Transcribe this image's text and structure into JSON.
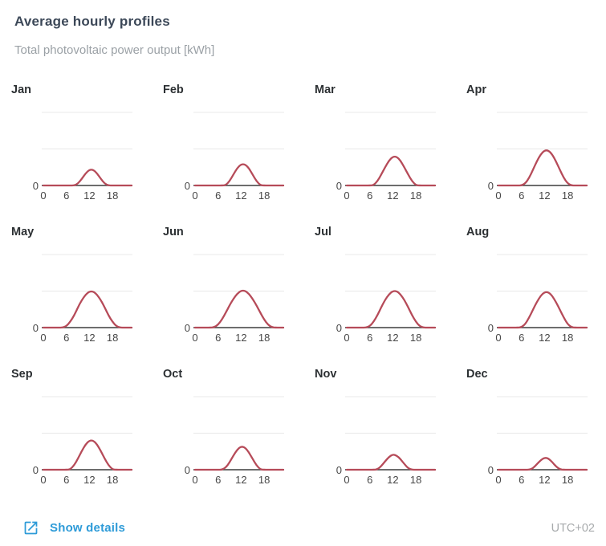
{
  "header": {
    "title": "Average hourly profiles",
    "subtitle": "Total photovoltaic power output [kWh]"
  },
  "footer": {
    "show_details_label": "Show details",
    "timezone": "UTC+02"
  },
  "colors": {
    "accent_blue": "#2e9bd8",
    "curve_red": "#b64b59",
    "gridline": "#e8e8e8",
    "axis": "#3d3d3d",
    "title_text": "#3c4858",
    "subtitle_text": "#9ba1a6"
  },
  "chart_data": {
    "type": "line",
    "title": "Average hourly profiles",
    "subtitle": "Total photovoltaic power output [kWh]",
    "x": [
      0,
      1,
      2,
      3,
      4,
      5,
      6,
      7,
      8,
      9,
      10,
      11,
      12,
      13,
      14,
      15,
      16,
      17,
      18,
      19,
      20,
      21,
      22,
      23
    ],
    "x_ticks": [
      0,
      6,
      12,
      18
    ],
    "ytick_labels": [
      "0"
    ],
    "ylim": [
      0,
      3
    ],
    "gridlines_y": [
      1,
      2
    ],
    "legend": "none",
    "grid": "horizontal-only",
    "line_color": "#b64b59",
    "series": [
      {
        "name": "Jan",
        "values": [
          0,
          0,
          0,
          0,
          0,
          0,
          0,
          0,
          0,
          0.05,
          0.18,
          0.33,
          0.43,
          0.43,
          0.33,
          0.18,
          0.05,
          0,
          0,
          0,
          0,
          0,
          0,
          0
        ]
      },
      {
        "name": "Feb",
        "values": [
          0,
          0,
          0,
          0,
          0,
          0,
          0,
          0,
          0.01,
          0.12,
          0.3,
          0.48,
          0.58,
          0.58,
          0.48,
          0.3,
          0.12,
          0.01,
          0,
          0,
          0,
          0,
          0,
          0
        ]
      },
      {
        "name": "Mar",
        "values": [
          0,
          0,
          0,
          0,
          0,
          0,
          0,
          0.01,
          0.12,
          0.3,
          0.5,
          0.68,
          0.79,
          0.79,
          0.68,
          0.5,
          0.3,
          0.12,
          0.01,
          0,
          0,
          0,
          0,
          0
        ]
      },
      {
        "name": "Apr",
        "values": [
          0,
          0,
          0,
          0,
          0,
          0,
          0,
          0.06,
          0.21,
          0.43,
          0.66,
          0.85,
          0.96,
          0.96,
          0.85,
          0.66,
          0.43,
          0.21,
          0.06,
          0,
          0,
          0,
          0,
          0
        ]
      },
      {
        "name": "May",
        "values": [
          0,
          0,
          0,
          0,
          0,
          0,
          0.04,
          0.16,
          0.33,
          0.55,
          0.75,
          0.9,
          0.99,
          0.99,
          0.9,
          0.75,
          0.55,
          0.33,
          0.16,
          0.04,
          0,
          0,
          0,
          0
        ]
      },
      {
        "name": "Jun",
        "values": [
          0,
          0,
          0,
          0,
          0,
          0.01,
          0.08,
          0.22,
          0.41,
          0.61,
          0.79,
          0.93,
          1.01,
          1.01,
          0.93,
          0.79,
          0.61,
          0.41,
          0.22,
          0.08,
          0.01,
          0,
          0,
          0
        ]
      },
      {
        "name": "Jul",
        "values": [
          0,
          0,
          0,
          0,
          0,
          0,
          0.04,
          0.16,
          0.34,
          0.56,
          0.76,
          0.91,
          1.0,
          1.0,
          0.91,
          0.76,
          0.56,
          0.34,
          0.16,
          0.04,
          0,
          0,
          0,
          0
        ]
      },
      {
        "name": "Aug",
        "values": [
          0,
          0,
          0,
          0,
          0,
          0,
          0.01,
          0.1,
          0.28,
          0.49,
          0.7,
          0.87,
          0.97,
          0.97,
          0.87,
          0.7,
          0.49,
          0.28,
          0.1,
          0.01,
          0,
          0,
          0,
          0
        ]
      },
      {
        "name": "Sep",
        "values": [
          0,
          0,
          0,
          0,
          0,
          0,
          0,
          0.01,
          0.12,
          0.3,
          0.51,
          0.69,
          0.8,
          0.8,
          0.69,
          0.51,
          0.3,
          0.12,
          0.01,
          0,
          0,
          0,
          0,
          0
        ]
      },
      {
        "name": "Oct",
        "values": [
          0,
          0,
          0,
          0,
          0,
          0,
          0,
          0,
          0.06,
          0.2,
          0.39,
          0.55,
          0.64,
          0.61,
          0.48,
          0.3,
          0.12,
          0.01,
          0,
          0,
          0,
          0,
          0,
          0
        ]
      },
      {
        "name": "Nov",
        "values": [
          0,
          0,
          0,
          0,
          0,
          0,
          0,
          0,
          0.01,
          0.1,
          0.23,
          0.35,
          0.42,
          0.39,
          0.29,
          0.16,
          0.04,
          0,
          0,
          0,
          0,
          0,
          0,
          0
        ]
      },
      {
        "name": "Dec",
        "values": [
          0,
          0,
          0,
          0,
          0,
          0,
          0,
          0,
          0,
          0.04,
          0.15,
          0.26,
          0.33,
          0.31,
          0.21,
          0.09,
          0.01,
          0,
          0,
          0,
          0,
          0,
          0,
          0
        ]
      }
    ]
  }
}
